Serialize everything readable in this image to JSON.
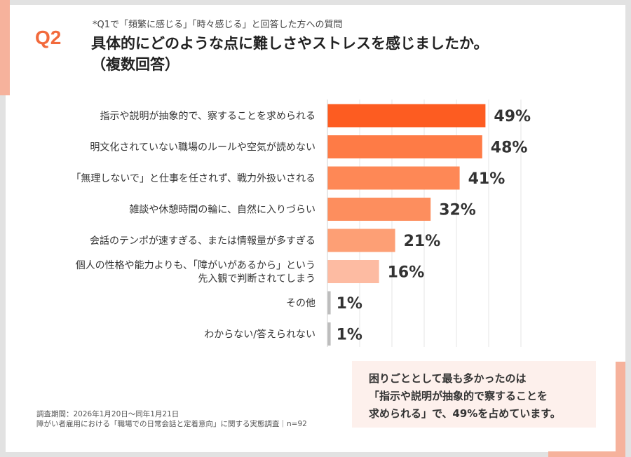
{
  "header": {
    "question_label": "Q2",
    "subtitle": "*Q1で「頻繁に感じる」「時々感じる」と回答した方への質問",
    "title_line1": "具体的にどのような点に難しさやストレスを感じましたか。",
    "title_line2": "（複数回答）"
  },
  "chart_data": {
    "type": "bar",
    "orientation": "horizontal",
    "categories": [
      [
        "指示や説明が抽象的で、察することを求められる"
      ],
      [
        "明文化されていない職場のルールや空気が読めない"
      ],
      [
        "「無理しないで」と仕事を任されず、戦力外扱いされる"
      ],
      [
        "雑談や休憩時間の輪に、自然に入りづらい"
      ],
      [
        "会話のテンポが速すぎる、または情報量が多すぎる"
      ],
      [
        "個人の性格や能力よりも、「障がいがあるから」という",
        "先入観で判断されてしまう"
      ],
      [
        "その他"
      ],
      [
        "わからない/答えられない"
      ]
    ],
    "values": [
      49,
      48,
      41,
      32,
      21,
      16,
      1,
      1
    ],
    "value_labels": [
      "49%",
      "48%",
      "41%",
      "32%",
      "21%",
      "16%",
      "1%",
      "1%"
    ],
    "colors": [
      "#fd5c21",
      "#fe7b46",
      "#fe8856",
      "#fd8e5e",
      "#fd9f75",
      "#fdbba2",
      "#bdbdbd",
      "#bdbdbd"
    ],
    "xlim": [
      0,
      60
    ],
    "grid": true,
    "xlabel": "",
    "ylabel": ""
  },
  "summary": {
    "line1": "困りごととして最も多かったのは",
    "line2": "「指示や説明が抽象的で察することを",
    "line3": "求められる」で、49%を占めています。"
  },
  "footnote": {
    "line1": "調査期間：2026年1月20日～同年1月21日",
    "line2": "障がい者雇用における「職場での日常会話と定着意向」に関する実態調査｜n=92"
  }
}
